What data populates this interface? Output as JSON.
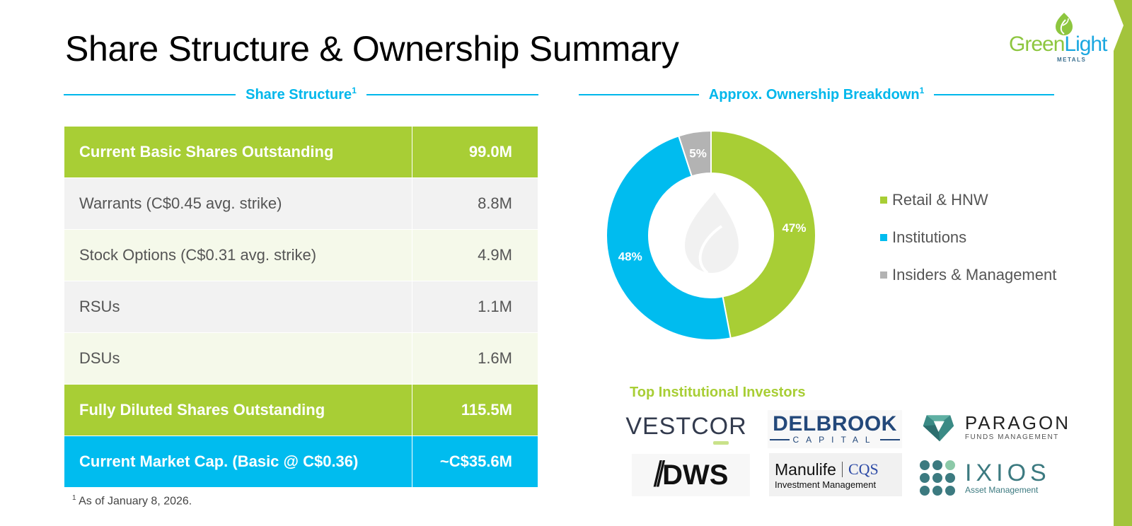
{
  "title": "Share Structure & Ownership Summary",
  "brand": {
    "name_part1": "Green",
    "name_part2": "Light",
    "sub": "METALS",
    "colors": {
      "green": "#a8ce35",
      "blue": "#00bcef",
      "gray": "#b3b3b3"
    }
  },
  "share_structure": {
    "heading": "Share Structure",
    "heading_sup": "1",
    "rows": [
      {
        "label": "Current Basic Shares Outstanding",
        "value": "99.0M",
        "style": "green"
      },
      {
        "label": "Warrants (C$0.45 avg. strike)",
        "value": "8.8M",
        "style": "gray"
      },
      {
        "label": "Stock Options (C$0.31 avg. strike)",
        "value": "4.9M",
        "style": "lightgreen"
      },
      {
        "label": "RSUs",
        "value": "1.1M",
        "style": "gray"
      },
      {
        "label": "DSUs",
        "value": "1.6M",
        "style": "lightgreen"
      },
      {
        "label": "Fully Diluted Shares Outstanding",
        "value": "115.5M",
        "style": "green"
      },
      {
        "label": "Current Market Cap. (Basic @ C$0.36)",
        "value": "~C$35.6M",
        "style": "blue"
      }
    ],
    "footnote_sup": "1",
    "footnote": "As of January 8, 2026."
  },
  "ownership": {
    "heading": "Approx. Ownership Breakdown",
    "heading_sup": "1"
  },
  "chart_data": {
    "type": "pie",
    "subtype": "donut",
    "title": "Approx. Ownership Breakdown",
    "categories": [
      "Retail & HNW",
      "Institutions",
      "Insiders & Management"
    ],
    "values": [
      47,
      48,
      5
    ],
    "labels": [
      "47%",
      "48%",
      "5%"
    ],
    "colors": [
      "#a8ce35",
      "#00bcef",
      "#b3b3b3"
    ],
    "start": "top",
    "direction": "clockwise",
    "legend_position": "right"
  },
  "investors": {
    "heading": "Top Institutional Investors",
    "logos": {
      "vestcor": {
        "text_a": "VESTC",
        "text_o": "O",
        "text_b": "R"
      },
      "delbrook": {
        "main": "DELBROOK",
        "sub": "CAPITAL"
      },
      "paragon": {
        "main": "PARAGON",
        "sub": "FUNDS MANAGEMENT"
      },
      "dws": {
        "slashes": "//",
        "main": "DWS"
      },
      "manulife": {
        "main": "Manulife",
        "partner": "CQS",
        "sub": "Investment Management"
      },
      "ixios": {
        "main": "IXIOS",
        "sub": "Asset Management"
      }
    }
  }
}
